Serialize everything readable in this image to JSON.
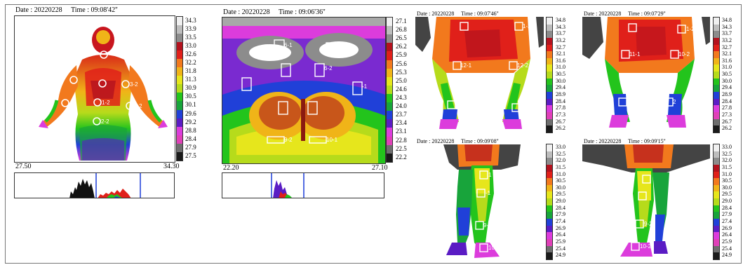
{
  "scale_colors": [
    "#f0f0f0",
    "#bdbdbd",
    "#8c8c8c",
    "#b4121e",
    "#e0201a",
    "#f2791d",
    "#f0b418",
    "#e6e61c",
    "#b6db1b",
    "#23c41c",
    "#18a43b",
    "#2040d8",
    "#5a1cc4",
    "#dc3cdc",
    "#e040b8",
    "#6e6e6e",
    "#1a1a1a"
  ],
  "panels": [
    {
      "header": "Date : 20220228     Time : 09:08'42''",
      "scale_ticks": [
        "34.3",
        "33.9",
        "33.5",
        "33.0",
        "32.6",
        "32.2",
        "31.8",
        "31.3",
        "30.9",
        "30.5",
        "30.1",
        "29.6",
        "29.2",
        "28.8",
        "28.4",
        "27.9",
        "27.5"
      ],
      "axis_min": "27.50",
      "axis_max": "34.30",
      "roi_labels": [
        "3-2",
        "1-2",
        "2-2",
        "2-2"
      ]
    },
    {
      "header": "Date : 20220228     Time : 09:06'36''",
      "scale_ticks": [
        "27.1",
        "26.8",
        "26.5",
        "26.2",
        "25.9",
        "25.6",
        "25.3",
        "25.0",
        "24.6",
        "24.3",
        "24.0",
        "23.7",
        "23.4",
        "23.1",
        "22.8",
        "22.5",
        "22.2"
      ],
      "axis_min": "22.20",
      "axis_max": "27.10",
      "roi_labels": [
        "6-1",
        "5-2",
        "6-2",
        "-1",
        "9-2",
        "10-1"
      ]
    },
    {
      "header": "Date : 20220228     Time : 09:07'46''",
      "scale_ticks": [
        "34.8",
        "34.3",
        "33.7",
        "33.2",
        "32.7",
        "32.1",
        "31.6",
        "31.0",
        "30.5",
        "30.0",
        "29.4",
        "28.9",
        "28.4",
        "27.8",
        "27.3",
        "26.7",
        "26.2"
      ],
      "roi_labels": [
        "1-2",
        "12-1",
        "12-2",
        "1-1",
        "1-2"
      ]
    },
    {
      "header": "Date : 20220228     Time : 09:07'29''",
      "scale_ticks": [
        "34.8",
        "34.3",
        "33.7",
        "33.2",
        "32.7",
        "32.1",
        "31.6",
        "31.0",
        "30.5",
        "30.0",
        "29.4",
        "28.9",
        "28.4",
        "27.8",
        "27.3",
        "26.7",
        "26.2"
      ],
      "roi_labels": [
        "1-2",
        "11-1",
        "10-2",
        "1",
        "2"
      ]
    },
    {
      "header": "Date : 20220228     Time : 09:09'08''",
      "scale_ticks": [
        "33.0",
        "32.5",
        "32.0",
        "31.5",
        "31.0",
        "30.5",
        "30.0",
        "29.5",
        "29.0",
        "28.4",
        "27.9",
        "27.4",
        "26.9",
        "26.4",
        "25.9",
        "25.4",
        "24.9"
      ],
      "roi_labels": [
        "1",
        "-1",
        "9-1",
        "10-1"
      ]
    },
    {
      "header": "Date : 20220228     Time : 09:09'15''",
      "scale_ticks": [
        "33.0",
        "32.5",
        "32.0",
        "31.5",
        "31.0",
        "30.5",
        "30.0",
        "29.5",
        "29.0",
        "28.4",
        "27.9",
        "27.4",
        "26.9",
        "26.4",
        "25.9",
        "25.4",
        "24.9"
      ],
      "roi_labels": [
        "9-2",
        "10-2"
      ]
    }
  ]
}
